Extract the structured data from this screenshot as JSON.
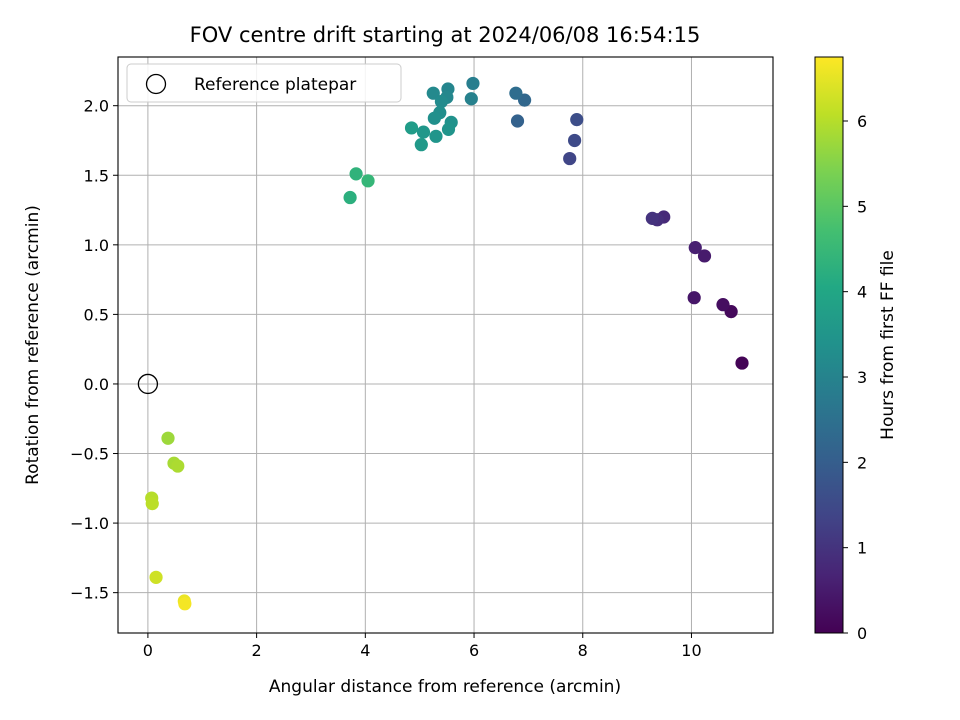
{
  "chart_data": {
    "type": "scatter",
    "title": "FOV centre drift starting at 2024/06/08 16:54:15",
    "xlabel": "Angular distance from reference (arcmin)",
    "ylabel": "Rotation from reference (arcmin)",
    "xlim": [
      -0.55,
      11.5
    ],
    "ylim": [
      -1.79,
      2.35
    ],
    "xticks": [
      0,
      2,
      4,
      6,
      8,
      10
    ],
    "yticks": [
      -1.5,
      -1.0,
      -0.5,
      0.0,
      0.5,
      1.0,
      1.5,
      2.0
    ],
    "grid": true,
    "legend": {
      "position": "top-left",
      "entries": [
        "Reference platepar"
      ]
    },
    "reference_point": {
      "x": 0.0,
      "y": 0.0
    },
    "colorbar": {
      "label": "Hours from first FF file",
      "colormap": "viridis",
      "range": [
        0,
        6.75
      ],
      "ticks": [
        0,
        1,
        2,
        3,
        4,
        5,
        6
      ]
    },
    "points": [
      {
        "x": 10.93,
        "y": 0.15,
        "c": 0.05
      },
      {
        "x": 10.73,
        "y": 0.52,
        "c": 0.15
      },
      {
        "x": 10.58,
        "y": 0.57,
        "c": 0.25
      },
      {
        "x": 10.05,
        "y": 0.62,
        "c": 0.4
      },
      {
        "x": 10.24,
        "y": 0.92,
        "c": 0.5
      },
      {
        "x": 10.07,
        "y": 0.98,
        "c": 0.6
      },
      {
        "x": 9.49,
        "y": 1.2,
        "c": 0.8
      },
      {
        "x": 9.37,
        "y": 1.18,
        "c": 0.9
      },
      {
        "x": 9.28,
        "y": 1.19,
        "c": 1.0
      },
      {
        "x": 7.76,
        "y": 1.62,
        "c": 1.4
      },
      {
        "x": 7.85,
        "y": 1.75,
        "c": 1.5
      },
      {
        "x": 7.89,
        "y": 1.9,
        "c": 1.6
      },
      {
        "x": 6.8,
        "y": 1.89,
        "c": 2.1
      },
      {
        "x": 6.93,
        "y": 2.04,
        "c": 2.25
      },
      {
        "x": 6.77,
        "y": 2.09,
        "c": 2.4
      },
      {
        "x": 5.98,
        "y": 2.16,
        "c": 2.85
      },
      {
        "x": 5.95,
        "y": 2.05,
        "c": 2.95
      },
      {
        "x": 5.52,
        "y": 2.12,
        "c": 3.05
      },
      {
        "x": 5.5,
        "y": 2.06,
        "c": 3.1
      },
      {
        "x": 5.25,
        "y": 2.09,
        "c": 3.15
      },
      {
        "x": 5.4,
        "y": 2.03,
        "c": 3.2
      },
      {
        "x": 5.37,
        "y": 1.95,
        "c": 3.3
      },
      {
        "x": 5.27,
        "y": 1.91,
        "c": 3.35
      },
      {
        "x": 5.58,
        "y": 1.88,
        "c": 3.4
      },
      {
        "x": 5.53,
        "y": 1.83,
        "c": 3.45
      },
      {
        "x": 5.3,
        "y": 1.78,
        "c": 3.5
      },
      {
        "x": 5.07,
        "y": 1.81,
        "c": 3.55
      },
      {
        "x": 5.03,
        "y": 1.72,
        "c": 3.6
      },
      {
        "x": 4.85,
        "y": 1.84,
        "c": 3.7
      },
      {
        "x": 3.72,
        "y": 1.34,
        "c": 4.25
      },
      {
        "x": 3.83,
        "y": 1.51,
        "c": 4.35
      },
      {
        "x": 4.05,
        "y": 1.46,
        "c": 4.45
      },
      {
        "x": 0.37,
        "y": -0.39,
        "c": 5.75
      },
      {
        "x": 0.48,
        "y": -0.57,
        "c": 5.85
      },
      {
        "x": 0.55,
        "y": -0.59,
        "c": 5.9
      },
      {
        "x": 0.07,
        "y": -0.82,
        "c": 6.0
      },
      {
        "x": 0.08,
        "y": -0.86,
        "c": 6.05
      },
      {
        "x": 0.15,
        "y": -1.39,
        "c": 6.25
      },
      {
        "x": 0.67,
        "y": -1.56,
        "c": 6.55
      },
      {
        "x": 0.68,
        "y": -1.58,
        "c": 6.65
      }
    ]
  }
}
